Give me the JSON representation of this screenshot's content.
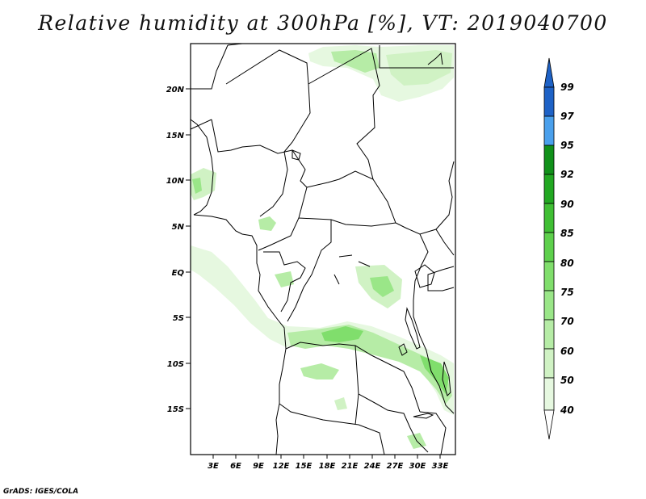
{
  "title": "Relative humidity at 300hPa [%], VT: 2019040700",
  "map": {
    "variable": "Relative humidity",
    "level": "300hPa",
    "units": "%",
    "valid_time": "2019040700",
    "lat_labels": [
      "20N",
      "15N",
      "10N",
      "5N",
      "EQ",
      "5S",
      "10S",
      "15S"
    ],
    "lon_labels": [
      "3E",
      "6E",
      "9E",
      "12E",
      "15E",
      "18E",
      "21E",
      "24E",
      "27E",
      "30E",
      "33E"
    ]
  },
  "colorbar": {
    "labels": [
      "99",
      "97",
      "95",
      "92",
      "90",
      "85",
      "80",
      "75",
      "70",
      "60",
      "50",
      "40"
    ],
    "colors": {
      "c40": "#e6f8e0",
      "c50": "#d0f2c4",
      "c60": "#b6eca6",
      "c70": "#9ae688",
      "c75": "#80de6c",
      "c80": "#5ed04c",
      "c85": "#40bf34",
      "c90": "#22a822",
      "c92": "#11911a",
      "c95": "#4aa0ec",
      "c97": "#2e7ed8",
      "c99": "#1e62c6"
    }
  },
  "credit": "GrADS: IGES/COLA"
}
